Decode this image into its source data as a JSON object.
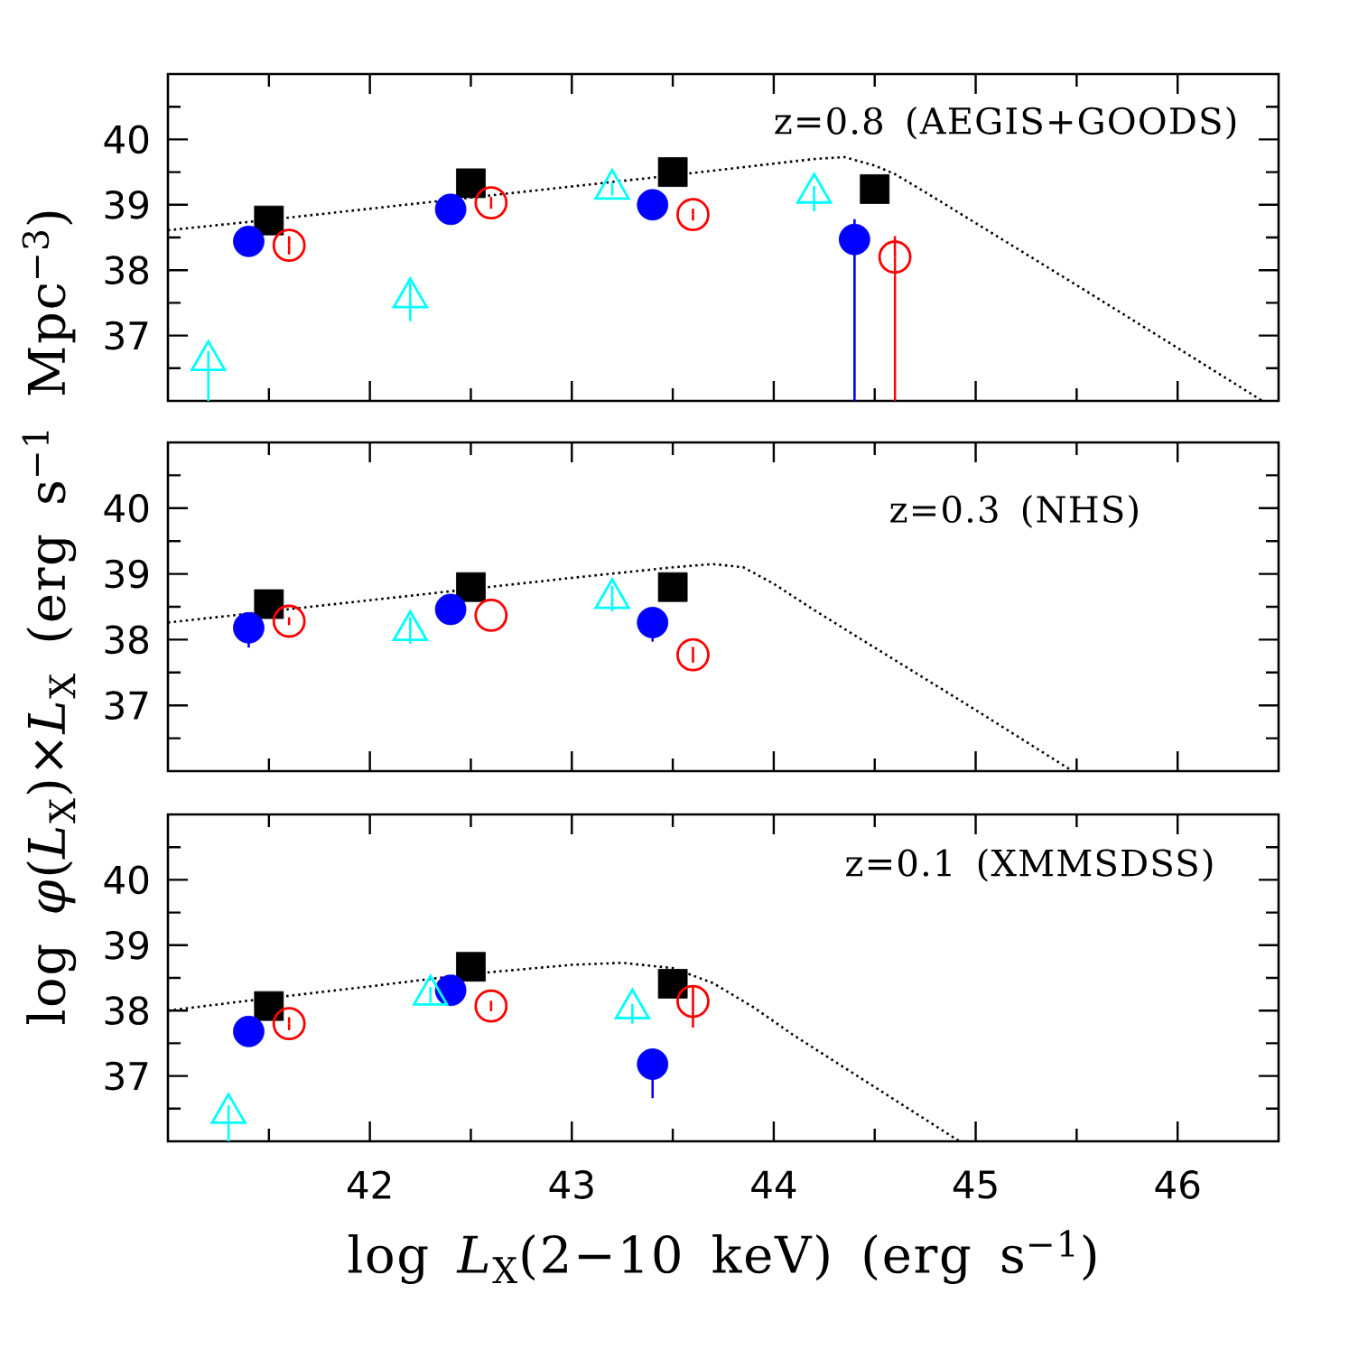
{
  "chart_data": [
    {
      "type": "scatter",
      "annotations": [
        "z=0.8  (AEGIS+GOODS)"
      ],
      "xlim": [
        41,
        46.5
      ],
      "ylim": [
        36,
        41
      ],
      "tick_labels": "y",
      "xticks": [
        {
          "value": 41.5,
          "label": null
        },
        42,
        {
          "value": 42.5,
          "label": null
        },
        43,
        {
          "value": 43.5,
          "label": null
        },
        44,
        {
          "value": 44.5,
          "label": null
        },
        45,
        {
          "value": 45.5,
          "label": null
        },
        46
      ],
      "yticks": [
        {
          "value": 36.5,
          "label": null
        },
        37,
        {
          "value": 37.5,
          "label": null
        },
        38,
        {
          "value": 38.5,
          "label": null
        },
        39,
        {
          "value": 39.5,
          "label": null
        },
        40,
        {
          "value": 40.5,
          "label": null
        }
      ],
      "series": [
        {
          "type": "line",
          "color": "#000000",
          "line_style": "dotted",
          "marker": "none",
          "x": [
            41.0,
            41.5,
            42.0,
            42.5,
            43.0,
            43.5,
            44.0,
            44.2,
            44.35,
            44.5,
            44.6,
            44.8,
            45.0,
            45.5,
            46.0,
            46.42
          ],
          "values": [
            38.61,
            38.77,
            38.94,
            39.11,
            39.28,
            39.45,
            39.63,
            39.7,
            39.73,
            39.6,
            39.47,
            39.1,
            38.72,
            37.77,
            36.81,
            36.0
          ]
        },
        {
          "color": "#000000",
          "marker": "square",
          "x": [
            41.5,
            42.5,
            43.5,
            44.5
          ],
          "values": [
            38.76,
            39.33,
            39.5,
            39.24
          ]
        },
        {
          "color": "#0000ff",
          "marker": "circle",
          "x": [
            41.4,
            42.4,
            43.4,
            44.4
          ],
          "values": [
            38.44,
            38.93,
            39.0,
            38.47
          ],
          "errors": [
            null,
            null,
            null,
            [
              36.0,
              38.78
            ]
          ]
        },
        {
          "color": "#ff0000",
          "marker": "circle-open",
          "x": [
            41.6,
            42.6,
            43.6,
            44.6
          ],
          "values": [
            38.38,
            39.03,
            38.85,
            38.2
          ],
          "errors": [
            0.14,
            0.09,
            0.09,
            [
              36.0,
              38.52
            ]
          ]
        },
        {
          "color": "#00ffff",
          "marker": "triangle-open",
          "x": [
            41.2,
            42.2,
            43.2,
            44.2
          ],
          "values": [
            36.62,
            37.58,
            39.24,
            39.18
          ],
          "errors": [
            [
              36.0,
              36.76
            ],
            [
              37.22,
              37.81
            ],
            0.1,
            [
              38.9,
              39.29
            ]
          ]
        }
      ]
    },
    {
      "type": "scatter",
      "annotations": [
        "z=0.3  (NHS)"
      ],
      "ylabel": "log  *φ*(*L*$_{X}$)×*L*$_{X}$  (erg s$^{−1}$ Mpc$^{−3}$)",
      "xlim": [
        41,
        46.5
      ],
      "ylim": [
        36,
        41
      ],
      "tick_labels": "y",
      "xticks": [
        {
          "value": 41.5,
          "label": null
        },
        42,
        {
          "value": 42.5,
          "label": null
        },
        43,
        {
          "value": 43.5,
          "label": null
        },
        44,
        {
          "value": 44.5,
          "label": null
        },
        45,
        {
          "value": 45.5,
          "label": null
        },
        46
      ],
      "yticks": [
        {
          "value": 36.5,
          "label": null
        },
        37,
        {
          "value": 37.5,
          "label": null
        },
        38,
        {
          "value": 38.5,
          "label": null
        },
        39,
        {
          "value": 39.5,
          "label": null
        },
        40,
        {
          "value": 40.5,
          "label": null
        }
      ],
      "series": [
        {
          "type": "line",
          "color": "#000000",
          "line_style": "dotted",
          "marker": "none",
          "x": [
            41.0,
            41.5,
            42.0,
            42.5,
            43.0,
            43.5,
            43.7,
            43.85,
            44.0,
            44.2,
            44.42,
            45.0,
            45.48
          ],
          "values": [
            38.26,
            38.43,
            38.6,
            38.77,
            38.94,
            39.1,
            39.15,
            39.1,
            38.85,
            38.45,
            38.03,
            36.93,
            36.0
          ]
        },
        {
          "color": "#000000",
          "marker": "square",
          "x": [
            41.5,
            42.5,
            43.5
          ],
          "values": [
            38.54,
            38.8,
            38.8
          ]
        },
        {
          "color": "#0000ff",
          "marker": "circle",
          "x": [
            41.4,
            42.4,
            43.4
          ],
          "values": [
            38.18,
            38.46,
            38.26
          ],
          "errors": [
            [
              37.88,
              38.18
            ],
            null,
            [
              37.97,
              38.26
            ]
          ]
        },
        {
          "color": "#ff0000",
          "marker": "circle-open",
          "x": [
            41.6,
            42.6,
            43.6
          ],
          "values": [
            38.28,
            38.37,
            37.77
          ],
          "errors": [
            0.06,
            null,
            0.12
          ]
        },
        {
          "color": "#00ffff",
          "marker": "triangle-open",
          "x": [
            42.2,
            43.2
          ],
          "values": [
            38.14,
            38.63
          ],
          "errors": [
            [
              37.94,
              38.34
            ],
            [
              38.43,
              38.82
            ]
          ]
        }
      ]
    },
    {
      "type": "scatter",
      "annotations": [
        "z=0.1  (XMMSDSS)"
      ],
      "xlabel": "log  *L*$_{X}$(2−10 keV)  (erg s$^{−1}$)",
      "xlim": [
        41,
        46.5
      ],
      "ylim": [
        36,
        41
      ],
      "xticks": [
        {
          "value": 41.5,
          "label": null
        },
        42,
        {
          "value": 42.5,
          "label": null
        },
        43,
        {
          "value": 43.5,
          "label": null
        },
        44,
        {
          "value": 44.5,
          "label": null
        },
        45,
        {
          "value": 45.5,
          "label": null
        },
        46
      ],
      "yticks": [
        {
          "value": 36.5,
          "label": null
        },
        37,
        {
          "value": 37.5,
          "label": null
        },
        38,
        {
          "value": 38.5,
          "label": null
        },
        39,
        {
          "value": 39.5,
          "label": null
        },
        40,
        {
          "value": 40.5,
          "label": null
        }
      ],
      "series": [
        {
          "type": "line",
          "color": "#000000",
          "line_style": "dotted",
          "marker": "none",
          "x": [
            41.0,
            41.5,
            42.0,
            42.5,
            43.0,
            43.25,
            43.5,
            43.7,
            43.9,
            44.1,
            44.5,
            44.92
          ],
          "values": [
            38.0,
            38.19,
            38.37,
            38.56,
            38.7,
            38.73,
            38.65,
            38.42,
            38.05,
            37.62,
            36.83,
            36.0
          ]
        },
        {
          "color": "#000000",
          "marker": "square",
          "x": [
            41.5,
            42.5,
            43.5
          ],
          "values": [
            38.07,
            38.67,
            38.41
          ]
        },
        {
          "color": "#0000ff",
          "marker": "circle",
          "x": [
            41.4,
            42.4,
            43.4
          ],
          "values": [
            37.68,
            38.31,
            37.18
          ],
          "errors": [
            null,
            null,
            [
              36.66,
              37.18
            ]
          ]
        },
        {
          "color": "#ff0000",
          "marker": "circle-open",
          "x": [
            41.6,
            42.6,
            43.6
          ],
          "values": [
            37.8,
            38.07,
            38.14
          ],
          "errors": [
            0.1,
            0.08,
            [
              37.74,
              38.39
            ]
          ]
        },
        {
          "color": "#00ffff",
          "marker": "triangle-open",
          "x": [
            41.3,
            42.3,
            43.3
          ],
          "values": [
            36.43,
            38.24,
            38.03
          ],
          "errors": [
            [
              36.0,
              36.55
            ],
            0.12,
            [
              37.8,
              38.1
            ]
          ]
        }
      ]
    }
  ]
}
